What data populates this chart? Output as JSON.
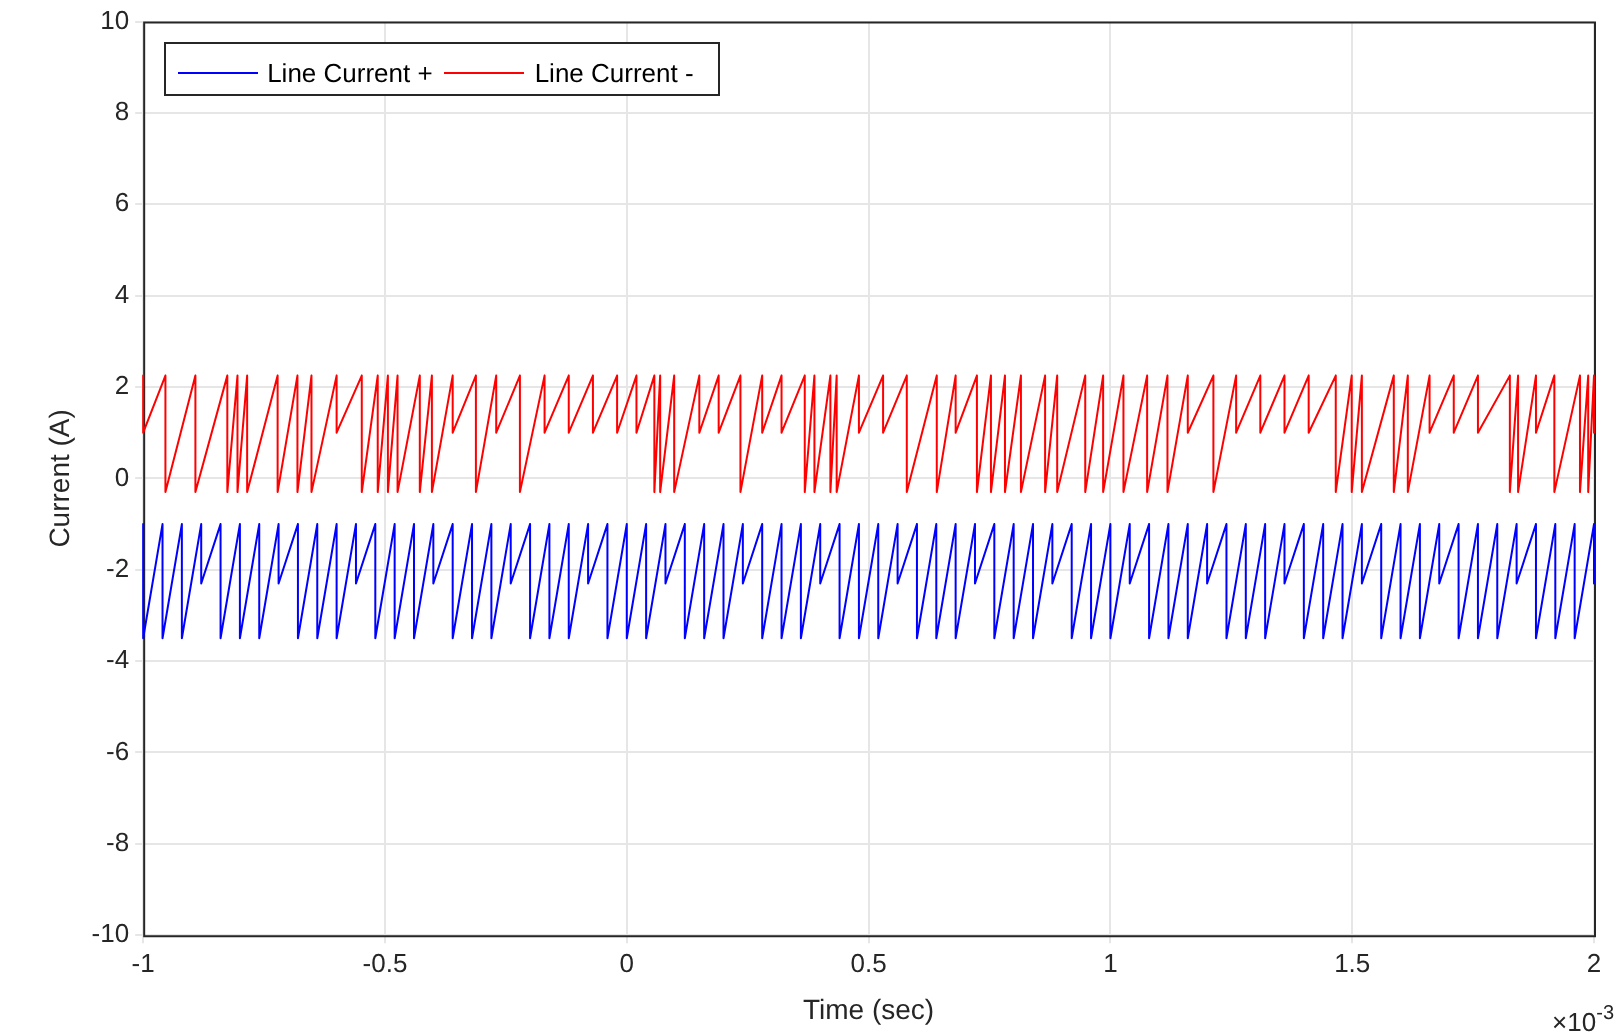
{
  "chart_data": {
    "type": "line",
    "xlabel": "Time (sec)",
    "ylabel": "Current (A)",
    "xlim": [
      -1,
      2
    ],
    "xticks": [
      -1,
      -0.5,
      0,
      0.5,
      1,
      1.5,
      2
    ],
    "ylim": [
      -10,
      10
    ],
    "yticks": [
      -10,
      -8,
      -6,
      -4,
      -2,
      0,
      2,
      4,
      6,
      8,
      10
    ],
    "grid": true,
    "legend": "top left",
    "annotations": [
      "×10$^{-3}$"
    ],
    "series": [
      {
        "name": "Line Current +",
        "color": "#0000ff",
        "x": [
          -1,
          -1,
          -0.96,
          -0.96,
          -0.92,
          -0.92,
          -0.88,
          -0.88,
          -0.84,
          -0.84,
          -0.8,
          -0.8,
          -0.76,
          -0.76,
          -0.72,
          -0.72,
          -0.68,
          -0.68,
          -0.64,
          -0.64,
          -0.6,
          -0.6,
          -0.56,
          -0.56,
          -0.52,
          -0.52,
          -0.48,
          -0.48,
          -0.44,
          -0.44,
          -0.4,
          -0.4,
          -0.36,
          -0.36,
          -0.32,
          -0.32,
          -0.28,
          -0.28,
          -0.24,
          -0.24,
          -0.2,
          -0.2,
          -0.16,
          -0.16,
          -0.12,
          -0.12,
          -0.08,
          -0.08,
          -0.04,
          -0.04,
          0,
          0,
          0.04,
          0.04,
          0.08,
          0.08,
          0.12,
          0.12,
          0.16,
          0.16,
          0.2,
          0.2,
          0.24,
          0.24,
          0.28,
          0.28,
          0.32,
          0.32,
          0.36,
          0.36,
          0.4,
          0.4,
          0.44,
          0.44,
          0.48,
          0.48,
          0.52,
          0.52,
          0.56,
          0.56,
          0.6,
          0.6,
          0.64,
          0.64,
          0.68,
          0.68,
          0.72,
          0.72,
          0.76,
          0.76,
          0.8,
          0.8,
          0.84,
          0.84,
          0.88,
          0.88,
          0.92,
          0.92,
          0.96,
          0.96,
          1,
          1,
          1.04,
          1.04,
          1.08,
          1.08,
          1.12,
          1.12,
          1.16,
          1.16,
          1.2,
          1.2,
          1.24,
          1.24,
          1.28,
          1.28,
          1.32,
          1.32,
          1.36,
          1.36,
          1.4,
          1.4,
          1.44,
          1.44,
          1.48,
          1.48,
          1.52,
          1.52,
          1.56,
          1.56,
          1.6,
          1.6,
          1.64,
          1.64,
          1.68,
          1.68,
          1.72,
          1.72,
          1.76,
          1.76,
          1.8,
          1.8,
          1.84,
          1.84,
          1.88,
          1.88,
          1.92,
          1.92,
          1.96,
          1.96,
          2,
          2
        ],
        "values": [
          -1,
          -3.5,
          -1,
          -3.5,
          -1,
          -3.5,
          -1,
          -2.3,
          -1,
          -3.5,
          -1,
          -3.5,
          -1,
          -3.5,
          -1,
          -2.3,
          -1,
          -3.5,
          -1,
          -3.5,
          -1,
          -3.5,
          -1,
          -2.3,
          -1,
          -3.5,
          -1,
          -3.5,
          -1,
          -3.5,
          -1,
          -2.3,
          -1,
          -3.5,
          -1,
          -3.5,
          -1,
          -3.5,
          -1,
          -2.3,
          -1,
          -3.5,
          -1,
          -3.5,
          -1,
          -3.5,
          -1,
          -2.3,
          -1,
          -3.5,
          -1,
          -3.5,
          -1,
          -3.5,
          -1,
          -2.3,
          -1,
          -3.5,
          -1,
          -3.5,
          -1,
          -3.5,
          -1,
          -2.3,
          -1,
          -3.5,
          -1,
          -3.5,
          -1,
          -3.5,
          -1,
          -2.3,
          -1,
          -3.5,
          -1,
          -3.5,
          -1,
          -3.5,
          -1,
          -2.3,
          -1,
          -3.5,
          -1,
          -3.5,
          -1,
          -3.5,
          -1,
          -2.3,
          -1,
          -3.5,
          -1,
          -3.5,
          -1,
          -3.5,
          -1,
          -2.3,
          -1,
          -3.5,
          -1,
          -3.5,
          -1,
          -3.5,
          -1,
          -2.3,
          -1,
          -3.5,
          -1,
          -3.5,
          -1,
          -3.5,
          -1,
          -2.3,
          -1,
          -3.5,
          -1,
          -3.5,
          -1,
          -3.5,
          -1,
          -2.3,
          -1,
          -3.5,
          -1,
          -3.5,
          -1,
          -3.5,
          -1,
          -2.3,
          -1,
          -3.5,
          -1,
          -3.5,
          -1,
          -3.5,
          -1,
          -2.3,
          -1,
          -3.5,
          -1,
          -3.5,
          -1,
          -3.5,
          -1,
          -2.3,
          -1,
          -3.5,
          -1,
          -3.5,
          -1,
          -3.5,
          -1,
          -2.3
        ]
      },
      {
        "name": "Line Current -",
        "color": "#ff0000",
        "x": [
          -1,
          -1,
          -0.954,
          -0.954,
          -0.892,
          -0.892,
          -0.826,
          -0.826,
          -0.805,
          -0.805,
          -0.785,
          -0.785,
          -0.722,
          -0.722,
          -0.681,
          -0.681,
          -0.652,
          -0.652,
          -0.6,
          -0.6,
          -0.548,
          -0.548,
          -0.515,
          -0.515,
          -0.494,
          -0.494,
          -0.474,
          -0.474,
          -0.428,
          -0.428,
          -0.403,
          -0.403,
          -0.36,
          -0.36,
          -0.312,
          -0.312,
          -0.27,
          -0.27,
          -0.221,
          -0.221,
          -0.17,
          -0.17,
          -0.12,
          -0.12,
          -0.07,
          -0.07,
          -0.02,
          -0.02,
          0.02,
          0.02,
          0.057,
          0.057,
          0.069,
          0.069,
          0.098,
          0.098,
          0.15,
          0.15,
          0.19,
          0.19,
          0.235,
          0.235,
          0.28,
          0.28,
          0.32,
          0.32,
          0.368,
          0.368,
          0.388,
          0.388,
          0.421,
          0.421,
          0.434,
          0.434,
          0.48,
          0.48,
          0.53,
          0.53,
          0.579,
          0.579,
          0.641,
          0.641,
          0.68,
          0.68,
          0.724,
          0.724,
          0.753,
          0.753,
          0.782,
          0.782,
          0.815,
          0.815,
          0.865,
          0.865,
          0.89,
          0.89,
          0.948,
          0.948,
          0.985,
          0.985,
          1.027,
          1.027,
          1.076,
          1.076,
          1.118,
          1.118,
          1.16,
          1.16,
          1.213,
          1.213,
          1.26,
          1.26,
          1.31,
          1.31,
          1.36,
          1.36,
          1.41,
          1.41,
          1.466,
          1.466,
          1.499,
          1.499,
          1.52,
          1.52,
          1.586,
          1.586,
          1.615,
          1.615,
          1.66,
          1.66,
          1.71,
          1.71,
          1.76,
          1.76,
          1.826,
          1.826,
          1.843,
          1.843,
          1.88,
          1.88,
          1.918,
          1.918,
          1.971,
          1.971,
          1.988,
          1.988,
          2,
          2
        ],
        "values": [
          2.25,
          1,
          2.25,
          -0.3,
          2.25,
          -0.3,
          2.25,
          -0.3,
          2.25,
          -0.3,
          2.25,
          -0.3,
          2.25,
          -0.3,
          2.25,
          -0.3,
          2.25,
          -0.3,
          2.25,
          1,
          2.25,
          -0.3,
          2.25,
          -0.3,
          2.25,
          -0.3,
          2.25,
          -0.3,
          2.25,
          -0.3,
          2.25,
          -0.3,
          2.25,
          1,
          2.25,
          -0.3,
          2.25,
          1,
          2.25,
          -0.3,
          2.25,
          1,
          2.25,
          1,
          2.25,
          1,
          2.25,
          1,
          2.25,
          1,
          2.25,
          -0.3,
          2.25,
          -0.3,
          2.25,
          -0.3,
          2.25,
          1,
          2.25,
          1,
          2.25,
          -0.3,
          2.25,
          1,
          2.25,
          1,
          2.25,
          -0.3,
          2.25,
          -0.3,
          2.25,
          -0.3,
          2.25,
          -0.3,
          2.25,
          1,
          2.25,
          1,
          2.25,
          -0.3,
          2.25,
          -0.3,
          2.25,
          1,
          2.25,
          -0.3,
          2.25,
          -0.3,
          2.25,
          -0.3,
          2.25,
          -0.3,
          2.25,
          -0.3,
          2.25,
          -0.3,
          2.25,
          -0.3,
          2.25,
          -0.3,
          2.25,
          -0.3,
          2.25,
          -0.3,
          2.25,
          -0.3,
          2.25,
          1,
          2.25,
          -0.3,
          2.25,
          1,
          2.25,
          1,
          2.25,
          1,
          2.25,
          1,
          2.25,
          -0.3,
          2.25,
          -0.3,
          2.25,
          -0.3,
          2.25,
          -0.3,
          2.25,
          -0.3,
          2.25,
          1,
          2.25,
          1,
          2.25,
          1,
          2.25,
          -0.3,
          2.25,
          -0.3,
          2.25,
          1,
          2.25,
          -0.3,
          2.25,
          -0.3,
          2.25,
          -0.3,
          2.25,
          1
        ]
      }
    ]
  }
}
